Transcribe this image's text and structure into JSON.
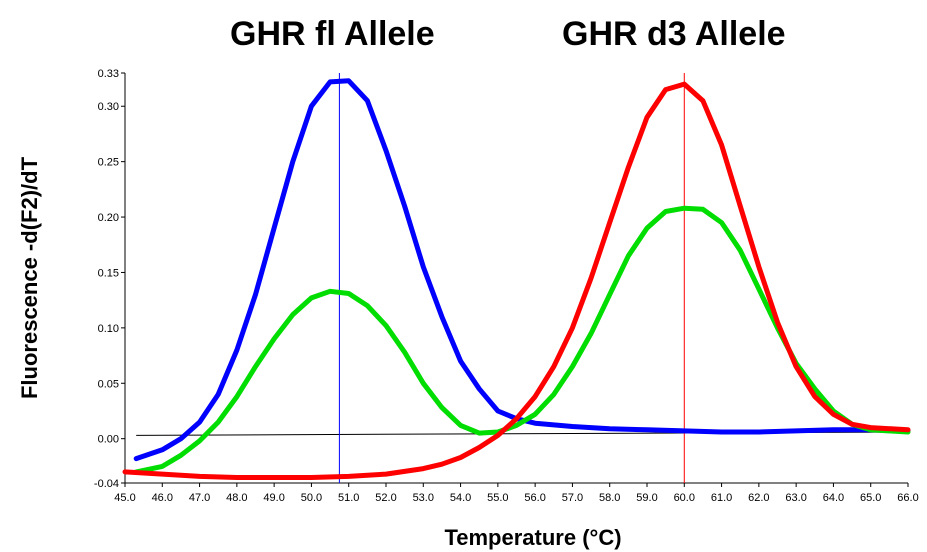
{
  "chart_data": {
    "type": "line",
    "annotations": [
      "GHR fl Allele",
      "GHR d3 Allele"
    ],
    "xlabel": "Temperature (°C)",
    "ylabel": "Fluorescence -d(F2)/dT",
    "xlim": [
      45.0,
      66.0
    ],
    "ylim": [
      -0.04,
      0.33
    ],
    "xticks": [
      "45.0",
      "46.0",
      "47.0",
      "48.0",
      "49.0",
      "50.0",
      "51.0",
      "52.0",
      "53.0",
      "54.0",
      "55.0",
      "56.0",
      "57.0",
      "58.0",
      "59.0",
      "60.0",
      "61.0",
      "62.0",
      "63.0",
      "64.0",
      "65.0",
      "66.0"
    ],
    "yticks": [
      "-0.04",
      "0.00",
      "0.05",
      "0.10",
      "0.15",
      "0.20",
      "0.25",
      "0.30",
      "0.33"
    ],
    "grid": false,
    "legend": "none",
    "series": [
      {
        "color": "#0000ff",
        "x": [
          45.3,
          46.0,
          46.5,
          47.0,
          47.5,
          48.0,
          48.5,
          49.0,
          49.5,
          50.0,
          50.5,
          51.0,
          51.5,
          52.0,
          52.5,
          53.0,
          53.5,
          54.0,
          54.5,
          55.0,
          55.5,
          56.0,
          57.0,
          58.0,
          59.0,
          60.0,
          61.0,
          62.0,
          63.0,
          64.0,
          65.0,
          66.0
        ],
        "y": [
          -0.018,
          -0.01,
          0.0,
          0.015,
          0.04,
          0.08,
          0.13,
          0.19,
          0.25,
          0.3,
          0.322,
          0.323,
          0.305,
          0.26,
          0.21,
          0.155,
          0.11,
          0.07,
          0.045,
          0.025,
          0.018,
          0.014,
          0.011,
          0.009,
          0.008,
          0.007,
          0.006,
          0.006,
          0.007,
          0.008,
          0.008,
          0.007
        ]
      },
      {
        "color": "#00dd00",
        "x": [
          45.3,
          46.0,
          46.5,
          47.0,
          47.5,
          48.0,
          48.5,
          49.0,
          49.5,
          50.0,
          50.5,
          51.0,
          51.5,
          52.0,
          52.5,
          53.0,
          53.5,
          54.0,
          54.5,
          55.0,
          55.5,
          56.0,
          56.5,
          57.0,
          57.5,
          58.0,
          58.5,
          59.0,
          59.5,
          60.0,
          60.5,
          61.0,
          61.5,
          62.0,
          62.5,
          63.0,
          63.5,
          64.0,
          64.5,
          65.0,
          66.0
        ],
        "y": [
          -0.03,
          -0.025,
          -0.015,
          -0.002,
          0.015,
          0.038,
          0.065,
          0.09,
          0.112,
          0.127,
          0.133,
          0.131,
          0.12,
          0.102,
          0.078,
          0.05,
          0.028,
          0.012,
          0.005,
          0.006,
          0.012,
          0.022,
          0.04,
          0.065,
          0.095,
          0.13,
          0.165,
          0.19,
          0.205,
          0.208,
          0.207,
          0.195,
          0.17,
          0.135,
          0.1,
          0.068,
          0.045,
          0.025,
          0.013,
          0.008,
          0.006
        ]
      },
      {
        "color": "#ff0000",
        "x": [
          45.0,
          46.0,
          47.0,
          48.0,
          49.0,
          50.0,
          51.0,
          52.0,
          53.0,
          53.5,
          54.0,
          54.5,
          55.0,
          55.5,
          56.0,
          56.5,
          57.0,
          57.5,
          58.0,
          58.5,
          59.0,
          59.5,
          60.0,
          60.5,
          61.0,
          61.5,
          62.0,
          62.5,
          63.0,
          63.5,
          64.0,
          64.5,
          65.0,
          66.0
        ],
        "y": [
          -0.03,
          -0.032,
          -0.034,
          -0.035,
          -0.035,
          -0.035,
          -0.034,
          -0.032,
          -0.027,
          -0.023,
          -0.017,
          -0.008,
          0.003,
          0.018,
          0.038,
          0.065,
          0.1,
          0.145,
          0.195,
          0.245,
          0.29,
          0.315,
          0.32,
          0.305,
          0.265,
          0.21,
          0.155,
          0.105,
          0.065,
          0.038,
          0.022,
          0.013,
          0.01,
          0.008
        ]
      }
    ],
    "baseline": {
      "color": "#000000",
      "x": [
        45.3,
        66.0
      ],
      "y": [
        0.003,
        0.006
      ]
    },
    "markers": [
      {
        "color": "#0000ff",
        "x": 50.75
      },
      {
        "color": "#ff0000",
        "x": 60.0
      }
    ]
  }
}
